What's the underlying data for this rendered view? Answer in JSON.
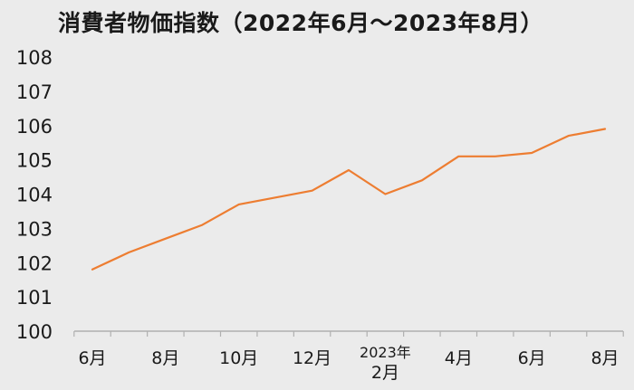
{
  "chart_data": {
    "type": "line",
    "title": "消費者物価指数（2022年6月～2023年8月）",
    "x": [
      "2022-06",
      "2022-07",
      "2022-08",
      "2022-09",
      "2022-10",
      "2022-11",
      "2022-12",
      "2023-01",
      "2023-02",
      "2023-03",
      "2023-04",
      "2023-05",
      "2023-06",
      "2023-07",
      "2023-08"
    ],
    "series": [
      {
        "values": [
          101.8,
          102.3,
          102.7,
          103.1,
          103.7,
          103.9,
          104.1,
          104.7,
          104.0,
          104.4,
          105.1,
          105.1,
          105.2,
          105.7,
          105.9
        ],
        "color": "#ed7d31"
      }
    ],
    "ylim": [
      100,
      108
    ],
    "yticks": [
      100,
      101,
      102,
      103,
      104,
      105,
      106,
      107,
      108
    ],
    "xtick_labels": [
      {
        "index": 0,
        "lines": [
          "6月"
        ]
      },
      {
        "index": 2,
        "lines": [
          "8月"
        ]
      },
      {
        "index": 4,
        "lines": [
          "10月"
        ]
      },
      {
        "index": 6,
        "lines": [
          "12月"
        ]
      },
      {
        "index": 8,
        "lines": [
          "2023年",
          "2月"
        ]
      },
      {
        "index": 10,
        "lines": [
          "4月"
        ]
      },
      {
        "index": 12,
        "lines": [
          "6月"
        ]
      },
      {
        "index": 14,
        "lines": [
          "8月"
        ]
      }
    ],
    "grid": false,
    "legend": "none"
  }
}
